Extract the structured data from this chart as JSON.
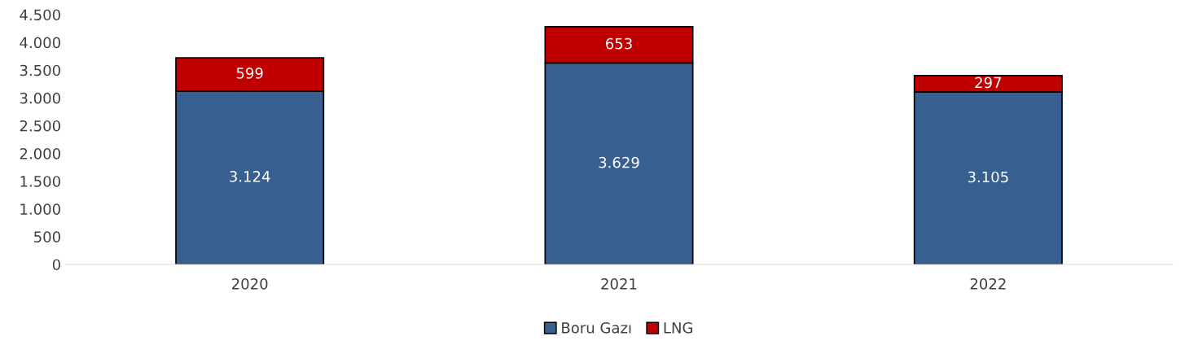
{
  "chart_data": {
    "type": "bar",
    "stacked": true,
    "categories": [
      "2020",
      "2021",
      "2022"
    ],
    "series": [
      {
        "name": "Boru Gazı",
        "color": "#375f8f",
        "values": [
          3124,
          3629,
          3105
        ],
        "value_labels": [
          "3.124",
          "3.629",
          "3.105"
        ]
      },
      {
        "name": "LNG",
        "color": "#c00000",
        "values": [
          599,
          653,
          297
        ],
        "value_labels": [
          "599",
          "653",
          "297"
        ]
      }
    ],
    "ylim": [
      0,
      4500
    ],
    "yticks": [
      0,
      500,
      {
        "value": 1000,
        "label": "1.000"
      },
      {
        "value": 1500,
        "label": "1.500"
      },
      {
        "value": 2000,
        "label": "2.000"
      },
      {
        "value": 2500,
        "label": "2.500"
      },
      {
        "value": 3000,
        "label": "3.000"
      },
      {
        "value": 3500,
        "label": "3.500"
      },
      {
        "value": 4000,
        "label": "4.000"
      },
      {
        "value": 4500,
        "label": "4.500"
      }
    ],
    "grid": false,
    "legend": "bottom"
  }
}
